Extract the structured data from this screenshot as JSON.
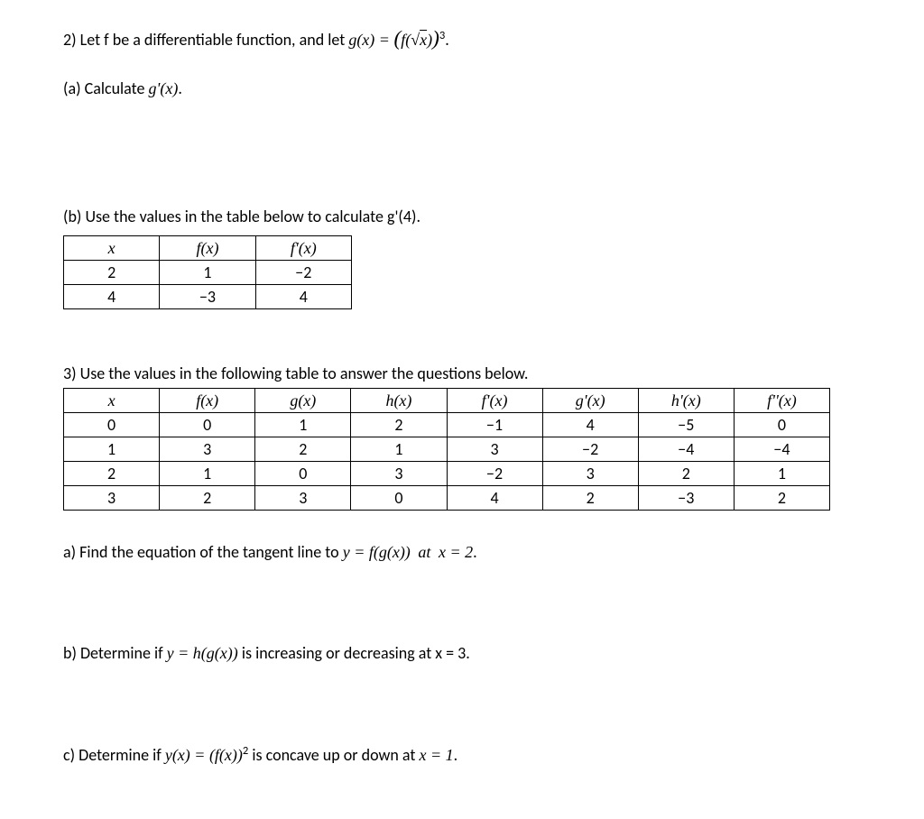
{
  "problem2": {
    "intro_prefix": "2) Let f be a differentiable function, and let ",
    "intro_equation": "g(x) = (f(√x))",
    "intro_exponent": "3",
    "intro_suffix": ".",
    "part_a": "(a) Calculate g'(x).",
    "part_b": "(b) Use the values in the table below to calculate g'(4).",
    "table": {
      "headers": [
        "x",
        "f(x)",
        "f'(x)"
      ],
      "rows": [
        [
          "2",
          "1",
          "−2"
        ],
        [
          "4",
          "−3",
          "4"
        ]
      ]
    }
  },
  "problem3": {
    "intro": "3) Use the values in the following table to answer the questions below.",
    "table": {
      "headers": [
        "x",
        "f(x)",
        "g(x)",
        "h(x)",
        "f'(x)",
        "g'(x)",
        "h'(x)",
        "f''(x)"
      ],
      "rows": [
        [
          "0",
          "0",
          "1",
          "2",
          "−1",
          "4",
          "−5",
          "0"
        ],
        [
          "1",
          "3",
          "2",
          "1",
          "3",
          "−2",
          "−4",
          "−4"
        ],
        [
          "2",
          "1",
          "0",
          "3",
          "−2",
          "3",
          "2",
          "1"
        ],
        [
          "3",
          "2",
          "3",
          "0",
          "4",
          "2",
          "−3",
          "2"
        ]
      ]
    },
    "part_a_prefix": "a) Find the equation of the tangent line to ",
    "part_a_eq1": "y = f(g(x))",
    "part_a_mid": " at ",
    "part_a_eq2": "x = 2",
    "part_a_suffix": ".",
    "part_b_prefix": "b) Determine if ",
    "part_b_eq": "y = h(g(x))",
    "part_b_suffix": " is increasing or decreasing at x = 3.",
    "part_c_prefix": "c) Determine if ",
    "part_c_eq": "y(x) = (f(x))",
    "part_c_exp": "2",
    "part_c_mid": " is concave up or down at ",
    "part_c_eq2": "x = 1",
    "part_c_suffix": "."
  }
}
